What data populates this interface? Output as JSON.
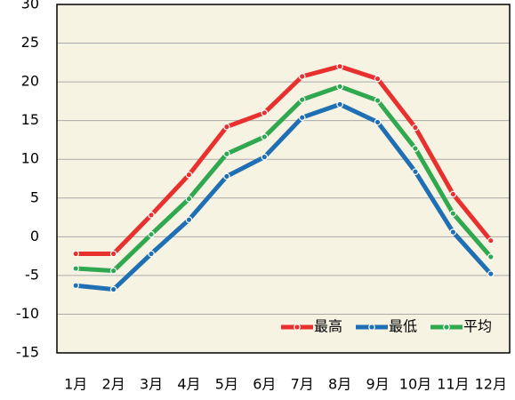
{
  "chart_data": {
    "type": "line",
    "categories": [
      "1月",
      "2月",
      "3月",
      "4月",
      "5月",
      "6月",
      "7月",
      "8月",
      "9月",
      "10月",
      "11月",
      "12月"
    ],
    "series": [
      {
        "name": "最高",
        "color": "#e8312f",
        "values": [
          -2.2,
          -2.2,
          2.8,
          8.0,
          14.2,
          16.0,
          20.7,
          22.0,
          20.4,
          14.1,
          5.5,
          -0.5
        ]
      },
      {
        "name": "最低",
        "color": "#1f6fb4",
        "values": [
          -6.3,
          -6.8,
          -2.2,
          2.2,
          7.8,
          10.3,
          15.4,
          17.1,
          14.8,
          8.4,
          0.6,
          -4.8
        ]
      },
      {
        "name": "平均",
        "color": "#2fa84f",
        "values": [
          -4.1,
          -4.4,
          0.3,
          4.9,
          10.7,
          12.9,
          17.7,
          19.4,
          17.6,
          11.4,
          3.0,
          -2.6
        ]
      }
    ],
    "ylim": [
      -15,
      30
    ],
    "yticks": [
      -15,
      -10,
      -5,
      0,
      5,
      10,
      15,
      20,
      25,
      30
    ],
    "grid": true,
    "legend": "lower right",
    "background": "#f7f3e3"
  }
}
